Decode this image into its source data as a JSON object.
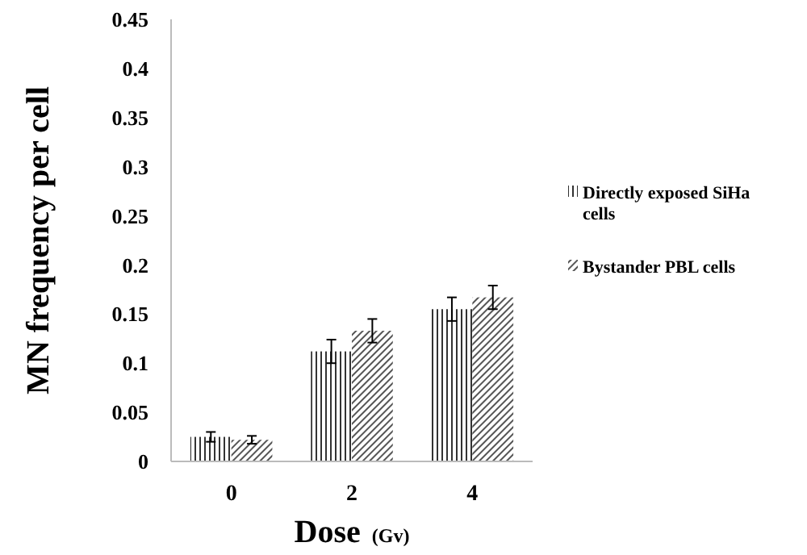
{
  "chart_data": {
    "type": "bar",
    "categories": [
      "0",
      "2",
      "4"
    ],
    "series": [
      {
        "name": "Directly exposed SiHa cells",
        "color": "#333333",
        "values": [
          0.025,
          0.112,
          0.155
        ],
        "errors": [
          0.005,
          0.012,
          0.012
        ]
      },
      {
        "name": "Bystander PBL cells",
        "color": "#555555",
        "values": [
          0.022,
          0.133,
          0.167
        ],
        "errors": [
          0.004,
          0.012,
          0.012
        ]
      }
    ],
    "xlabel": "Dose (Gv)",
    "ylabel": "MN frequency per cell",
    "ylim": [
      0,
      0.45
    ],
    "yticks": [
      0,
      0.05,
      0.1,
      0.15,
      0.2,
      0.25,
      0.3,
      0.35,
      0.4,
      0.45
    ],
    "legend": "right",
    "grid": false
  }
}
